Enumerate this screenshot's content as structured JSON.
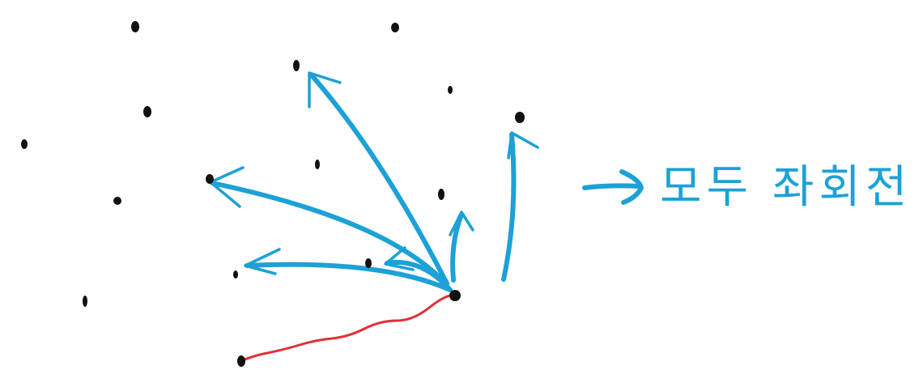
{
  "annotation": {
    "text": "모두 좌회전",
    "color": "#1da1d6"
  },
  "colors": {
    "points": "#111111",
    "arrows": "#1da1d6",
    "segment": "#e0303a"
  }
}
